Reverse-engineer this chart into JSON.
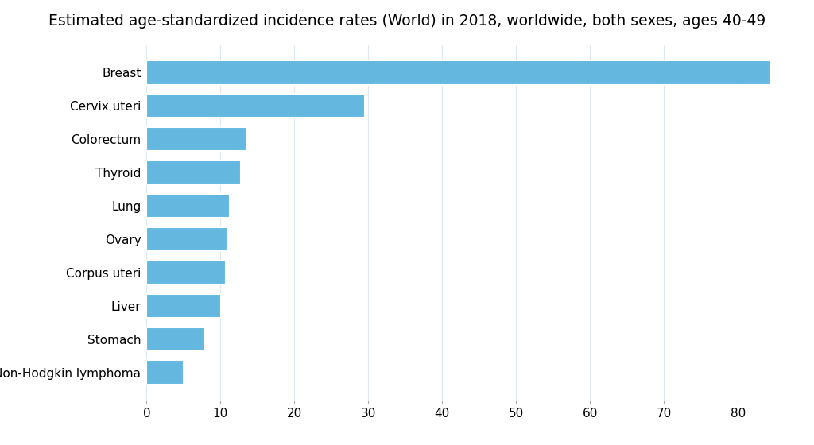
{
  "title": "Estimated age-standardized incidence rates (World) in 2018, worldwide, both sexes, ages 40-49",
  "categories": [
    "Breast",
    "Cervix uteri",
    "Colorectum",
    "Thyroid",
    "Lung",
    "Ovary",
    "Corpus uteri",
    "Liver",
    "Stomach",
    "Non-Hodgkin lymphoma"
  ],
  "values": [
    84.5,
    29.5,
    13.5,
    12.8,
    11.3,
    10.9,
    10.7,
    10.1,
    7.8,
    5.0
  ],
  "bar_color": "#64b8e0",
  "background_color": "#ffffff",
  "xlim": [
    0,
    87
  ],
  "xticks": [
    0,
    10,
    20,
    30,
    40,
    50,
    60,
    70,
    80
  ],
  "title_fontsize": 13.5,
  "label_fontsize": 11,
  "tick_fontsize": 11,
  "grid_color": "#dde8f0",
  "bar_edge_color": "white",
  "bar_linewidth": 1.5,
  "bar_height": 0.72
}
